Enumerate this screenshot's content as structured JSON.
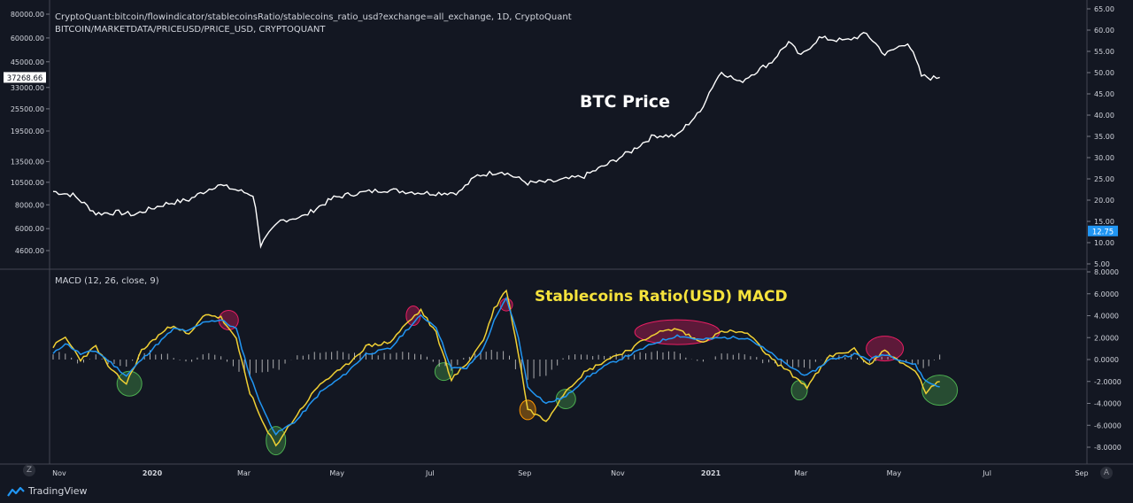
{
  "header": {
    "line1": "CryptoQuant:bitcoin/flowindicator/stablecoinsRatio/stablecoins_ratio_usd?exchange=all_exchange, 1D, CryptoQuant",
    "line2": "BITCOIN/MARKETDATA/PRICEUSD/PRICE_USD, CRYPTOQUANT"
  },
  "annotations": {
    "price_title": "BTC Price",
    "macd_title": "Stablecoins Ratio(USD) MACD",
    "macd_indicator_label": "MACD (12, 26, close, 9)"
  },
  "branding": {
    "logo_text": "TradingView"
  },
  "buttons": {
    "zoom_left": "Z",
    "auto_right": "A"
  },
  "colors": {
    "background": "#131722",
    "price_line": "#ffffff",
    "macd_line": "#2196f3",
    "signal_line": "#f0d034",
    "histogram": "#c8c8c8",
    "annotation_yellow": "#f5e23c",
    "ratio_badge": "#2196f3",
    "red_marker": "#e91e63",
    "green_marker": "#4caf50",
    "orange_marker": "#ff9800"
  },
  "chart_data": [
    {
      "type": "line",
      "name": "BTC price panel",
      "title": "BTC Price",
      "left_axis": {
        "scale": "log",
        "ticks": [
          "80000.00",
          "60000.00",
          "45000.00",
          "33000.00",
          "25500.00",
          "19500.00",
          "13500.00",
          "10500.00",
          "8000.00",
          "6000.00",
          "4600.00"
        ],
        "current_label": "37268.66"
      },
      "right_axis": {
        "ticks": [
          "65.00",
          "60.00",
          "55.00",
          "50.00",
          "45.00",
          "40.00",
          "35.00",
          "30.00",
          "25.00",
          "20.00",
          "15.00",
          "10.00",
          "5.00"
        ],
        "current_label": "12.75"
      },
      "x_ticks": [
        "Nov",
        "2020",
        "Mar",
        "May",
        "Jul",
        "Sep",
        "Nov",
        "2021",
        "Mar",
        "May",
        "Jul",
        "Sep"
      ],
      "series": [
        {
          "name": "BTC Price",
          "x": [
            "2019-10-28",
            "2019-11-10",
            "2019-11-25",
            "2019-12-10",
            "2019-12-20",
            "2020-01-10",
            "2020-01-25",
            "2020-02-13",
            "2020-03-07",
            "2020-03-12",
            "2020-03-25",
            "2020-04-10",
            "2020-04-29",
            "2020-05-10",
            "2020-06-01",
            "2020-06-15",
            "2020-07-01",
            "2020-07-20",
            "2020-08-01",
            "2020-08-17",
            "2020-09-03",
            "2020-09-20",
            "2020-10-10",
            "2020-10-25",
            "2020-11-10",
            "2020-11-25",
            "2020-12-10",
            "2020-12-25",
            "2021-01-08",
            "2021-01-20",
            "2021-02-10",
            "2021-02-21",
            "2021-03-01",
            "2021-03-13",
            "2021-03-30",
            "2021-04-13",
            "2021-04-25",
            "2021-05-10",
            "2021-05-19",
            "2021-05-25",
            "2021-05-31"
          ],
          "y": [
            9400,
            9000,
            7200,
            7300,
            7100,
            8100,
            8500,
            10200,
            9000,
            4900,
            6600,
            7000,
            8700,
            9100,
            9600,
            9400,
            9200,
            9300,
            11400,
            12000,
            10400,
            10600,
            11300,
            13000,
            15300,
            18500,
            18400,
            24500,
            40000,
            35000,
            45000,
            57000,
            48000,
            60000,
            58000,
            63000,
            49000,
            57000,
            38000,
            37000,
            37268.66
          ]
        }
      ]
    },
    {
      "type": "line",
      "name": "MACD panel",
      "title": "Stablecoins Ratio(USD) MACD",
      "indicator": "MACD (12, 26, close, 9)",
      "right_axis": {
        "ticks": [
          "8.0000",
          "6.0000",
          "4.0000",
          "2.0000",
          "0.0000",
          "-2.0000",
          "-4.0000",
          "-6.0000",
          "-8.0000"
        ],
        "ylim": [
          -8.5,
          8.5
        ]
      },
      "series": [
        {
          "name": "MACD",
          "x": [
            "2019-10-28",
            "2019-11-05",
            "2019-11-15",
            "2019-11-25",
            "2019-12-05",
            "2019-12-15",
            "2019-12-25",
            "2020-01-05",
            "2020-01-15",
            "2020-01-25",
            "2020-02-05",
            "2020-02-15",
            "2020-02-25",
            "2020-03-05",
            "2020-03-15",
            "2020-03-22",
            "2020-04-05",
            "2020-04-20",
            "2020-05-05",
            "2020-05-20",
            "2020-06-05",
            "2020-06-15",
            "2020-06-25",
            "2020-07-05",
            "2020-07-15",
            "2020-07-25",
            "2020-08-05",
            "2020-08-12",
            "2020-08-20",
            "2020-08-28",
            "2020-09-03",
            "2020-09-15",
            "2020-09-28",
            "2020-10-10",
            "2020-10-25",
            "2020-11-10",
            "2020-11-25",
            "2020-12-10",
            "2020-12-25",
            "2021-01-10",
            "2021-01-25",
            "2021-02-10",
            "2021-02-20",
            "2021-03-05",
            "2021-03-20",
            "2021-04-05",
            "2021-04-15",
            "2021-04-25",
            "2021-05-05",
            "2021-05-15",
            "2021-05-22",
            "2021-05-31"
          ],
          "y": [
            0.5,
            1.5,
            0.5,
            0.8,
            -0.3,
            -1.5,
            0.0,
            1.5,
            2.8,
            2.6,
            3.5,
            3.6,
            2.8,
            -1.5,
            -5.0,
            -6.8,
            -5.5,
            -3.0,
            -1.5,
            0.5,
            1.0,
            2.6,
            4.0,
            3.0,
            -0.8,
            -0.8,
            1.0,
            3.5,
            5.6,
            2.0,
            -2.5,
            -4.0,
            -3.4,
            -1.8,
            -0.5,
            0.5,
            1.5,
            2.2,
            1.8,
            2.0,
            2.0,
            0.5,
            -0.5,
            -1.5,
            0.0,
            0.5,
            0.0,
            0.5,
            0.0,
            -0.5,
            -2.0,
            -2.5
          ]
        },
        {
          "name": "Signal",
          "x": [
            "2019-10-28",
            "2019-11-05",
            "2019-11-15",
            "2019-11-25",
            "2019-12-05",
            "2019-12-15",
            "2019-12-25",
            "2020-01-05",
            "2020-01-15",
            "2020-01-25",
            "2020-02-05",
            "2020-02-15",
            "2020-02-25",
            "2020-03-05",
            "2020-03-15",
            "2020-03-22",
            "2020-04-05",
            "2020-04-20",
            "2020-05-05",
            "2020-05-20",
            "2020-06-05",
            "2020-06-15",
            "2020-06-25",
            "2020-07-05",
            "2020-07-15",
            "2020-07-25",
            "2020-08-05",
            "2020-08-12",
            "2020-08-20",
            "2020-08-28",
            "2020-09-03",
            "2020-09-15",
            "2020-09-28",
            "2020-10-10",
            "2020-10-25",
            "2020-11-10",
            "2020-11-25",
            "2020-12-10",
            "2020-12-25",
            "2021-01-10",
            "2021-01-25",
            "2021-02-10",
            "2021-02-20",
            "2021-03-05",
            "2021-03-20",
            "2021-04-05",
            "2021-04-15",
            "2021-04-25",
            "2021-05-05",
            "2021-05-15",
            "2021-05-22",
            "2021-05-31"
          ],
          "y": [
            1.2,
            2.0,
            0.0,
            1.2,
            -1.0,
            -2.2,
            0.8,
            2.2,
            3.2,
            2.2,
            4.2,
            3.8,
            1.8,
            -3.0,
            -6.3,
            -7.8,
            -5.0,
            -2.2,
            -0.8,
            1.2,
            1.6,
            3.2,
            4.5,
            2.4,
            -1.8,
            -0.4,
            1.8,
            4.6,
            6.4,
            0.5,
            -4.5,
            -5.6,
            -2.8,
            -1.2,
            0.0,
            1.0,
            2.4,
            2.8,
            1.6,
            2.6,
            2.4,
            0.0,
            -1.0,
            -2.5,
            0.3,
            0.9,
            -0.5,
            0.9,
            -0.3,
            -1.0,
            -3.0,
            -2.0
          ]
        }
      ]
    }
  ]
}
